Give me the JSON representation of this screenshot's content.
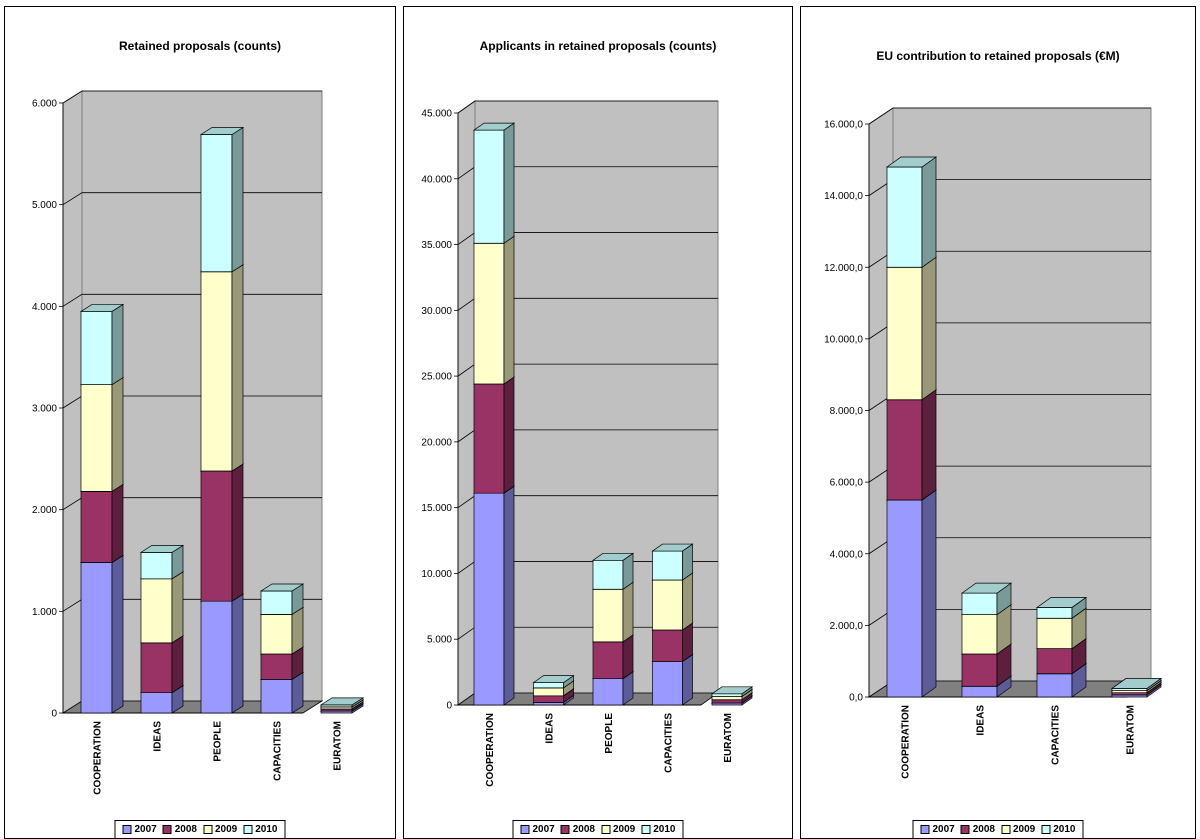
{
  "legend": {
    "series": [
      {
        "name": "2007",
        "color": "#9999FF"
      },
      {
        "name": "2008",
        "color": "#993366"
      },
      {
        "name": "2009",
        "color": "#FFFFCC"
      },
      {
        "name": "2010",
        "color": "#CCFFFF"
      }
    ]
  },
  "chart_data": [
    {
      "type": "bar",
      "stacked": true,
      "three_d": true,
      "title": "Retained proposals (counts)",
      "xlabel": "",
      "ylabel": "",
      "categories": [
        "COOPERATION",
        "IDEAS",
        "PEOPLE",
        "CAPACITIES",
        "EURATOM"
      ],
      "ylim": [
        0,
        6000
      ],
      "yticks": [
        "0",
        "1.000",
        "2.000",
        "3.000",
        "4.000",
        "5.000",
        "6.000"
      ],
      "series": [
        {
          "name": "2007",
          "values": [
            1480,
            200,
            1100,
            330,
            20
          ]
        },
        {
          "name": "2008",
          "values": [
            700,
            490,
            1280,
            250,
            20
          ]
        },
        {
          "name": "2009",
          "values": [
            1050,
            630,
            1960,
            390,
            20
          ]
        },
        {
          "name": "2010",
          "values": [
            720,
            260,
            1350,
            230,
            20
          ]
        }
      ],
      "grid": true,
      "legend_position": "bottom"
    },
    {
      "type": "bar",
      "stacked": true,
      "three_d": true,
      "title": "Applicants in retained proposals (counts)",
      "xlabel": "",
      "ylabel": "",
      "categories": [
        "COOPERATION",
        "IDEAS",
        "PEOPLE",
        "CAPACITIES",
        "EURATOM"
      ],
      "ylim": [
        0,
        45000
      ],
      "yticks": [
        "0",
        "5.000",
        "10.000",
        "15.000",
        "20.000",
        "25.000",
        "30.000",
        "35.000",
        "40.000",
        "45.000"
      ],
      "series": [
        {
          "name": "2007",
          "values": [
            16100,
            200,
            2000,
            3300,
            150
          ]
        },
        {
          "name": "2008",
          "values": [
            8300,
            500,
            2800,
            2400,
            250
          ]
        },
        {
          "name": "2009",
          "values": [
            10700,
            600,
            4000,
            3800,
            250
          ]
        },
        {
          "name": "2010",
          "values": [
            8600,
            400,
            2200,
            2200,
            200
          ]
        }
      ],
      "grid": true,
      "legend_position": "bottom"
    },
    {
      "type": "bar",
      "stacked": true,
      "three_d": true,
      "title": "EU contribution to retained proposals (€M)",
      "xlabel": "",
      "ylabel": "",
      "categories": [
        "COOPERATION",
        "IDEAS",
        "CAPACITIES",
        "EURATOM"
      ],
      "ylim": [
        0,
        16000
      ],
      "yticks": [
        "0,0",
        "2.000,0",
        "4.000,0",
        "6.000,0",
        "8.000,0",
        "10.000,0",
        "12.000,0",
        "14.000,0",
        "16.000,0"
      ],
      "series": [
        {
          "name": "2007",
          "values": [
            5500,
            300,
            650,
            60
          ]
        },
        {
          "name": "2008",
          "values": [
            2800,
            900,
            700,
            60
          ]
        },
        {
          "name": "2009",
          "values": [
            3700,
            1100,
            850,
            60
          ]
        },
        {
          "name": "2010",
          "values": [
            2800,
            600,
            300,
            60
          ]
        }
      ],
      "grid": true,
      "legend_position": "bottom"
    }
  ]
}
